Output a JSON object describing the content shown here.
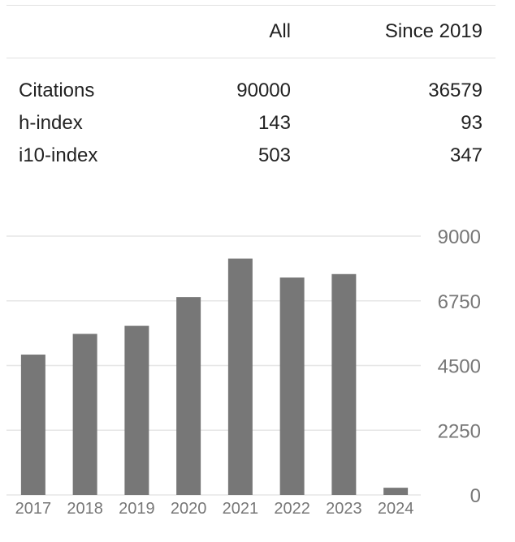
{
  "table": {
    "header": {
      "all": "All",
      "since": "Since 2019"
    },
    "rows": [
      {
        "label": "Citations",
        "all": "90000",
        "since": "36579"
      },
      {
        "label": "h-index",
        "all": "143",
        "since": "93"
      },
      {
        "label": "i10-index",
        "all": "503",
        "since": "347"
      }
    ]
  },
  "chart_data": {
    "type": "bar",
    "categories": [
      "2017",
      "2018",
      "2019",
      "2020",
      "2021",
      "2022",
      "2023",
      "2024"
    ],
    "values": [
      4880,
      5600,
      5880,
      6880,
      8220,
      7560,
      7680,
      250
    ],
    "yticks": [
      "0",
      "2250",
      "4500",
      "6750",
      "9000"
    ],
    "ylim": [
      0,
      9000
    ],
    "bar_color": "#777777",
    "grid_color": "#e6e6e6"
  }
}
